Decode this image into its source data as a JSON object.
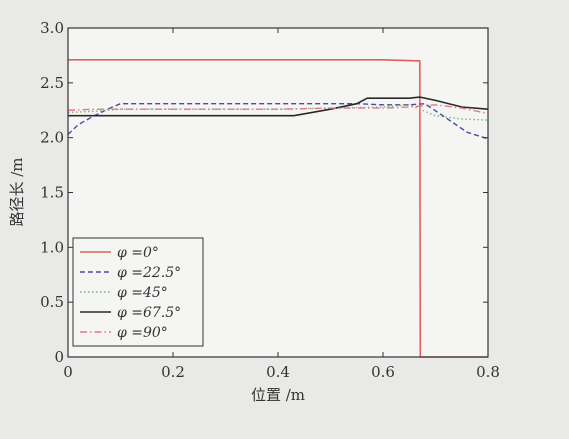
{
  "chart_data": {
    "type": "line",
    "xlabel": "位置 /m",
    "ylabel": "路径长 /m",
    "xlim": [
      0,
      0.8
    ],
    "ylim": [
      0,
      3.0
    ],
    "xticks": [
      "0",
      "0.2",
      "0.4",
      "0.6",
      "0.8"
    ],
    "yticks": [
      "0",
      "0.5",
      "1.0",
      "1.5",
      "2.0",
      "2.5",
      "3.0"
    ],
    "grid": false,
    "legend_position": "bottom-left",
    "series": [
      {
        "name": "φ =0°",
        "color": "#e0605a",
        "dash": "solid",
        "x": [
          0,
          0.1,
          0.2,
          0.3,
          0.4,
          0.5,
          0.6,
          0.67,
          0.671,
          0.8
        ],
        "y": [
          2.71,
          2.71,
          2.71,
          2.71,
          2.71,
          2.71,
          2.71,
          2.7,
          0,
          0
        ]
      },
      {
        "name": "φ =22.5°",
        "color": "#4a4aa6",
        "dash": "dashed",
        "x": [
          0,
          0.02,
          0.05,
          0.08,
          0.1,
          0.2,
          0.3,
          0.4,
          0.5,
          0.55,
          0.6,
          0.65,
          0.68,
          0.72,
          0.76,
          0.8
        ],
        "y": [
          2.03,
          2.12,
          2.2,
          2.27,
          2.31,
          2.31,
          2.31,
          2.31,
          2.31,
          2.31,
          2.3,
          2.3,
          2.31,
          2.18,
          2.05,
          1.99
        ]
      },
      {
        "name": "φ =45°",
        "color": "#7fb07f",
        "dash": "dotted",
        "x": [
          0,
          0.05,
          0.1,
          0.2,
          0.3,
          0.4,
          0.5,
          0.6,
          0.65,
          0.7,
          0.75,
          0.8
        ],
        "y": [
          2.23,
          2.24,
          2.26,
          2.26,
          2.26,
          2.26,
          2.27,
          2.28,
          2.3,
          2.2,
          2.17,
          2.16
        ]
      },
      {
        "name": "φ =67.5°",
        "color": "#2a2a2a",
        "dash": "solid",
        "x": [
          0,
          0.1,
          0.2,
          0.3,
          0.4,
          0.43,
          0.5,
          0.55,
          0.57,
          0.6,
          0.65,
          0.67,
          0.7,
          0.75,
          0.8
        ],
        "y": [
          2.2,
          2.2,
          2.2,
          2.2,
          2.2,
          2.2,
          2.26,
          2.31,
          2.36,
          2.36,
          2.36,
          2.37,
          2.34,
          2.28,
          2.26
        ]
      },
      {
        "name": "φ =90°",
        "color": "#e07a8a",
        "dash": "dashdot",
        "x": [
          0,
          0.05,
          0.1,
          0.2,
          0.3,
          0.4,
          0.5,
          0.6,
          0.65,
          0.7,
          0.75,
          0.8
        ],
        "y": [
          2.25,
          2.26,
          2.26,
          2.26,
          2.26,
          2.26,
          2.27,
          2.27,
          2.28,
          2.3,
          2.27,
          2.22
        ]
      }
    ]
  }
}
